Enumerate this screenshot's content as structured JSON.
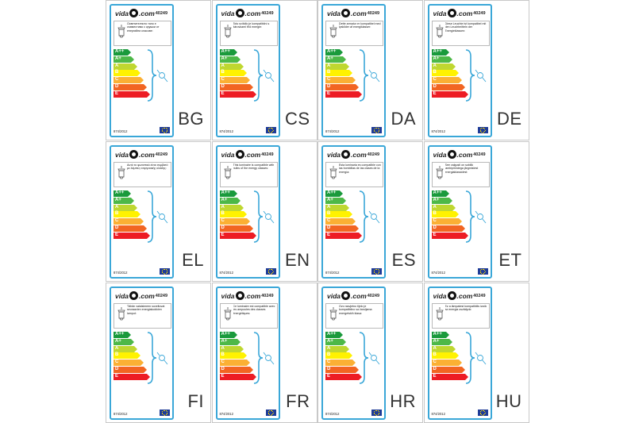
{
  "brand": {
    "name_left": "vida",
    "name_right": ".com"
  },
  "product_code": "40249",
  "regulation": "874/2012",
  "classes": [
    "A++",
    "A+",
    "A",
    "B",
    "C",
    "D",
    "E"
  ],
  "class_colors": [
    "#1a9a3c",
    "#4db848",
    "#bfd730",
    "#fff200",
    "#fbb034",
    "#f26522",
    "#ed1c24"
  ],
  "flag_color": "#1f3c98",
  "label_border_color": "#3aa7d8",
  "labels": [
    {
      "lang": "BG",
      "text": "Осветителното тяло е съвместимо с крушки от енергийни класове:"
    },
    {
      "lang": "CS",
      "text": "Toto svítidlo je kompatibilní s žárovkami tříd energie:"
    },
    {
      "lang": "DA",
      "text": "Dette armatur er kompatibel med lyskilder af energiklasser:"
    },
    {
      "lang": "DE",
      "text": "Diese Leuchte ist kompatibel mit den Leuchtmitteln der Energieklassen:"
    },
    {
      "lang": "EL",
      "text": "Αυτό το φωτιστικό είναι συμβατό με λάμπες ενεργειακής κλάσης:"
    },
    {
      "lang": "EN",
      "text": "This luminaire is compatible with bulbs of the energy classes:"
    },
    {
      "lang": "ES",
      "text": "Esta luminaria es compatible con las bombillas de las clases de la energía:"
    },
    {
      "lang": "ET",
      "text": "See valgusti on sobilik lambipirnidega järgmistest energiaklassidest:"
    },
    {
      "lang": "FI",
      "text": "Tähän valaisimeen soveltuvat seuraavien energialuokkien lamput:"
    },
    {
      "lang": "FR",
      "text": "Ce luminaire est compatible avec les ampoules des classes énergétiques:"
    },
    {
      "lang": "HR",
      "text": "Ovo rasvjetno tijelo je kompatibilno sa žaruljama energetskih klasa:"
    },
    {
      "lang": "HU",
      "text": "Ez a lámpatest kompatibilis izzók az energia osztályok:"
    }
  ]
}
